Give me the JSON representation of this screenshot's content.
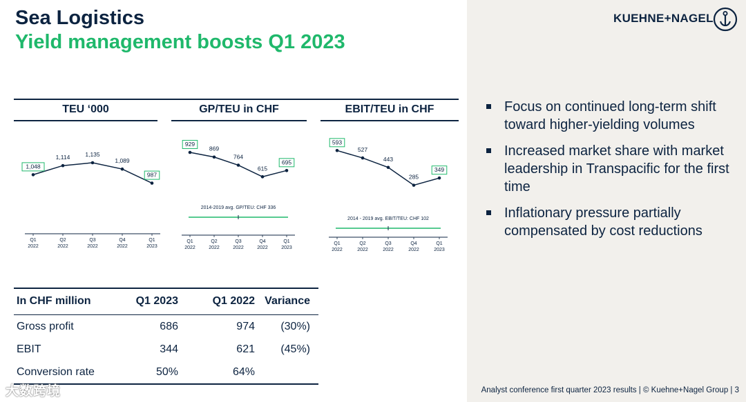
{
  "header": {
    "title": "Sea Logistics",
    "subtitle": "Yield management boosts Q1 2023",
    "brand": "KUEHNE+NAGEL"
  },
  "colors": {
    "navy": "#0c2340",
    "green": "#1fb86b",
    "panel": "#f2f0ec"
  },
  "chart_data": [
    {
      "type": "line",
      "title": "TEU ‘000",
      "categories": [
        "Q1 2022",
        "Q2 2022",
        "Q3 2022",
        "Q4 2022",
        "Q1 2023"
      ],
      "tick_top": [
        "Q1",
        "Q2",
        "Q3",
        "Q4",
        "Q1"
      ],
      "tick_bottom": [
        "2022",
        "2022",
        "2022",
        "2022",
        "2023"
      ],
      "values": [
        1048,
        1114,
        1135,
        1089,
        987
      ],
      "labels": [
        "1,048",
        "1,114",
        "1,135",
        "1,089",
        "987"
      ],
      "boxed": [
        0,
        4
      ],
      "ylim": [
        700,
        1300
      ],
      "avg_label": null
    },
    {
      "type": "line",
      "title": "GP/TEU in CHF",
      "categories": [
        "Q1 2022",
        "Q2 2022",
        "Q3 2022",
        "Q4 2022",
        "Q1 2023"
      ],
      "tick_top": [
        "Q1",
        "Q2",
        "Q3",
        "Q4",
        "Q1"
      ],
      "tick_bottom": [
        "2022",
        "2022",
        "2022",
        "2022",
        "2023"
      ],
      "values": [
        929,
        869,
        764,
        615,
        695
      ],
      "labels": [
        "929",
        "869",
        "764",
        "615",
        "695"
      ],
      "boxed": [
        0,
        4
      ],
      "ylim": [
        200,
        1000
      ],
      "avg_value": 336,
      "avg_label": "2014-2019 avg. GP/TEU: CHF 336"
    },
    {
      "type": "line",
      "title": "EBIT/TEU in CHF",
      "categories": [
        "Q1 2022",
        "Q2 2022",
        "Q3 2022",
        "Q4 2022",
        "Q1 2023"
      ],
      "tick_top": [
        "Q1",
        "Q2",
        "Q3",
        "Q4",
        "Q1"
      ],
      "tick_bottom": [
        "2022",
        "2022",
        "2022",
        "2022",
        "2023"
      ],
      "values": [
        593,
        527,
        443,
        285,
        349
      ],
      "labels": [
        "593",
        "527",
        "443",
        "285",
        "349"
      ],
      "boxed": [
        0,
        4
      ],
      "ylim": [
        50,
        650
      ],
      "avg_value": 102,
      "avg_label": "2014 - 2019 avg. EBIT/TEU: CHF 102"
    }
  ],
  "bullets": [
    "Focus on continued long-term shift toward higher-yielding volumes",
    "Increased market share with market leadership in Transpacific for the first time",
    "Inflationary pressure partially compensated by cost reductions"
  ],
  "table": {
    "headers": [
      "In CHF million",
      "Q1 2023",
      "Q1 2022",
      "Variance"
    ],
    "rows": [
      [
        "Gross profit",
        "686",
        "974",
        "(30%)"
      ],
      [
        "EBIT",
        "344",
        "621",
        "(45%)"
      ],
      [
        "Conversion rate",
        "50%",
        "64%",
        ""
      ]
    ]
  },
  "footer": "Analyst conference first quarter 2023 results | © Kuehne+Nagel Group | 3",
  "watermark": "大数跨境"
}
